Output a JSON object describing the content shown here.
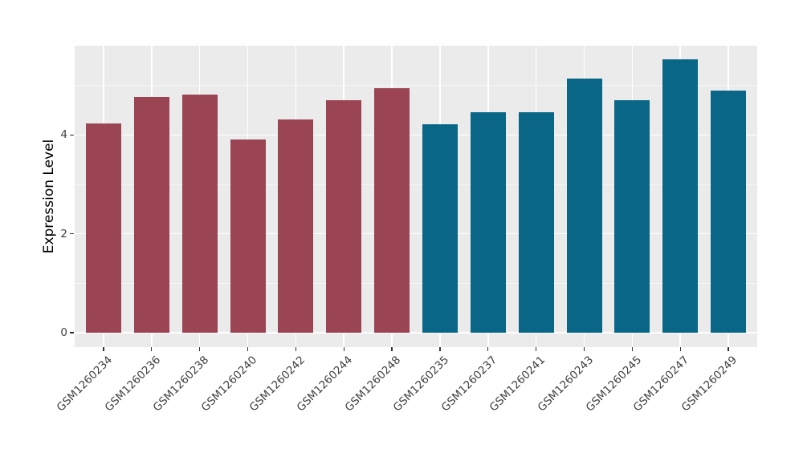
{
  "chart_data": {
    "type": "bar",
    "title": "",
    "xlabel": "",
    "ylabel": "Expression Level",
    "categories": [
      "GSM1260234",
      "GSM1260236",
      "GSM1260238",
      "GSM1260240",
      "GSM1260242",
      "GSM1260244",
      "GSM1260248",
      "GSM1260235",
      "GSM1260237",
      "GSM1260241",
      "GSM1260243",
      "GSM1260245",
      "GSM1260247",
      "GSM1260249"
    ],
    "values": [
      4.24,
      4.77,
      4.82,
      3.91,
      4.31,
      4.7,
      4.95,
      4.22,
      4.46,
      4.46,
      5.14,
      4.7,
      5.53,
      4.9
    ],
    "colors": [
      "#9B4453",
      "#9B4453",
      "#9B4453",
      "#9B4453",
      "#9B4453",
      "#9B4453",
      "#9B4453",
      "#0A6687",
      "#0A6687",
      "#0A6687",
      "#0A6687",
      "#0A6687",
      "#0A6687",
      "#0A6687"
    ],
    "yticks": [
      0,
      2,
      4
    ],
    "minor_yticks": [
      1,
      3,
      5
    ],
    "ylim": [
      0,
      5.8
    ],
    "grid": true,
    "legend_position": "none",
    "panel_background": "#EBEBEB",
    "grid_major_color": "#FFFFFF",
    "grid_minor_color": "#F6F6F6",
    "axis_text_color": "#404040",
    "tick_mark_color": "#333333"
  }
}
